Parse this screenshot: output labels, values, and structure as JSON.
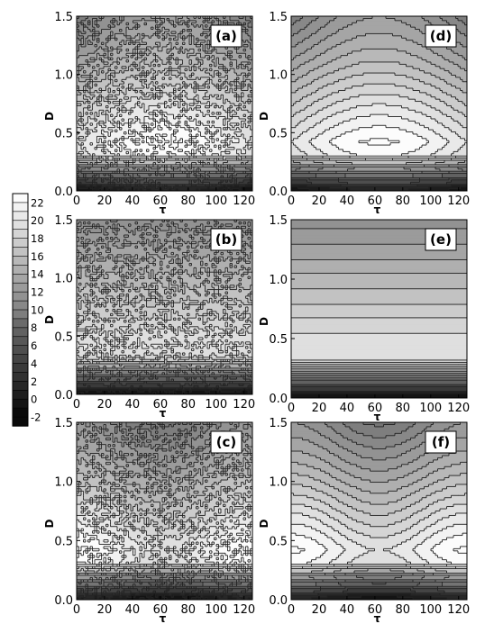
{
  "chart_data": {
    "type": "heatmap",
    "x_axis": {
      "label": "τ",
      "ticks": [
        0,
        20,
        40,
        60,
        80,
        100,
        120
      ],
      "range": [
        0,
        126
      ]
    },
    "y_axis": {
      "label": "D",
      "ticks": [
        "0.0",
        "0.5",
        "1.0",
        "1.5"
      ],
      "range": [
        0,
        1.5
      ]
    },
    "colorbar": {
      "ticks": [
        "22",
        "20",
        "18",
        "16",
        "14",
        "12",
        "10",
        "8",
        "6",
        "4",
        "2",
        "0",
        "-2"
      ],
      "range": [
        -2,
        24
      ],
      "levels": 26
    },
    "panels": [
      {
        "label": "(a)",
        "pattern": "dome",
        "center_x": 63,
        "peak_depth": 0.42,
        "noisy": true
      },
      {
        "label": "(d)",
        "pattern": "dome",
        "center_x": 63,
        "peak_depth": 0.42,
        "noisy": false
      },
      {
        "label": "(b)",
        "pattern": "layered",
        "noisy": true
      },
      {
        "label": "(e)",
        "pattern": "layered",
        "noisy": false
      },
      {
        "label": "(c)",
        "pattern": "bowl",
        "peak_depth": 0.42,
        "noisy": true
      },
      {
        "label": "(f)",
        "pattern": "bowl",
        "peak_depth": 0.42,
        "noisy": false
      }
    ]
  }
}
